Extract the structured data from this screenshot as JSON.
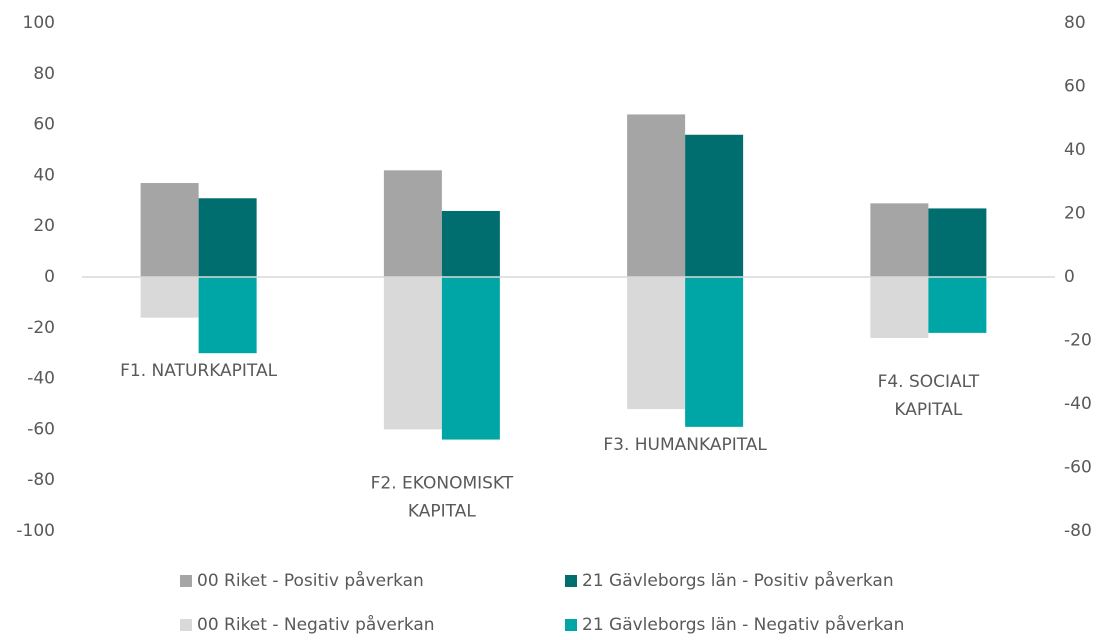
{
  "chart_data": {
    "type": "bar",
    "categories": [
      "F1. NATURKAPITAL",
      "F2. EKONOMISKT KAPITAL",
      "F3. HUMANKAPITAL",
      "F4. SOCIALT KAPITAL"
    ],
    "series": [
      {
        "name": "00 Riket - Positiv påverkan",
        "color": "#a5a5a5",
        "values": [
          37,
          42,
          64,
          29
        ]
      },
      {
        "name": "21 Gävleborgs län - Positiv påverkan",
        "color": "#006e6e",
        "values": [
          31,
          26,
          56,
          27
        ]
      },
      {
        "name": "00 Riket - Negativ påverkan",
        "color": "#d9d9d9",
        "values": [
          -16,
          -60,
          -52,
          -24
        ]
      },
      {
        "name": "21 Gävleborgs län - Negativ påverkan",
        "color": "#00a6a6",
        "values": [
          -30,
          -64,
          -59,
          -22
        ]
      }
    ],
    "ylim": [
      -100,
      100
    ],
    "yticks": [
      -100,
      -80,
      -60,
      -40,
      -20,
      0,
      20,
      40,
      60,
      80,
      100
    ],
    "y2lim": [
      -80,
      80
    ],
    "y2ticks": [
      -80,
      -60,
      -40,
      -20,
      0,
      20,
      40,
      60,
      80
    ],
    "grid": false
  }
}
